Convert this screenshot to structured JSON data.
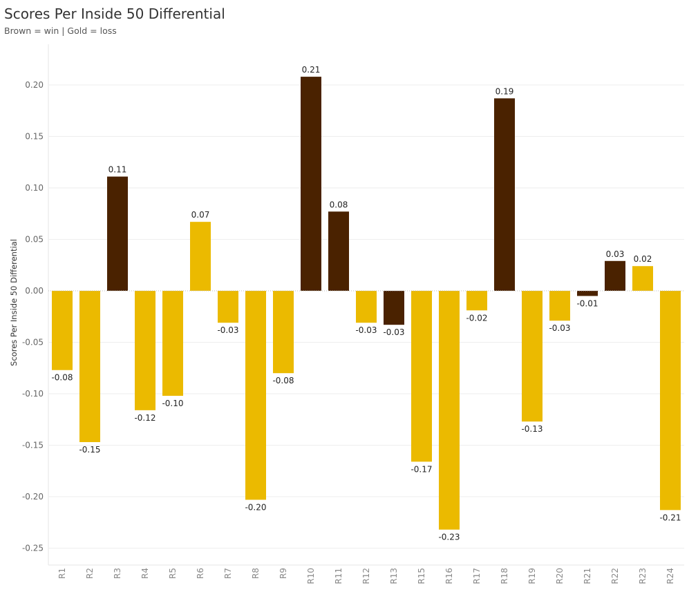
{
  "title": "Scores Per Inside 50 Differential",
  "subtitle": "Brown = win | Gold = loss",
  "colors": {
    "win": "#4a2200",
    "loss": "#ebba00"
  },
  "chart_data": {
    "type": "bar",
    "title": "Scores Per Inside 50 Differential",
    "subtitle": "Brown = win | Gold = loss",
    "xlabel": "",
    "ylabel": "Scores Per Inside 50 Differential",
    "ylim": [
      -0.26,
      0.24
    ],
    "yticks": [
      0.2,
      0.15,
      0.1,
      0.05,
      0.0,
      -0.05,
      -0.1,
      -0.15,
      -0.2,
      -0.25
    ],
    "ytick_labels": [
      "0.20",
      "0.15",
      "0.10",
      "0.05",
      "0.00",
      "-0.05",
      "-0.10",
      "-0.15",
      "-0.20",
      "-0.25"
    ],
    "grid": true,
    "categories": [
      "R1",
      "R2",
      "R3",
      "R4",
      "R5",
      "R6",
      "R7",
      "R8",
      "R9",
      "R10",
      "R11",
      "R12",
      "R13",
      "R15",
      "R16",
      "R17",
      "R18",
      "R19",
      "R20",
      "R21",
      "R22",
      "R23",
      "R24"
    ],
    "values": [
      -0.077,
      -0.147,
      0.111,
      -0.116,
      -0.102,
      0.067,
      -0.031,
      -0.203,
      -0.08,
      0.208,
      0.077,
      -0.031,
      -0.033,
      -0.166,
      -0.232,
      -0.019,
      0.187,
      -0.127,
      -0.029,
      -0.005,
      0.029,
      0.024,
      -0.213
    ],
    "labels": [
      "-0.08",
      "-0.15",
      "0.11",
      "-0.12",
      "-0.10",
      "0.07",
      "-0.03",
      "-0.20",
      "-0.08",
      "0.21",
      "0.08",
      "-0.03",
      "-0.03",
      "-0.17",
      "-0.23",
      "-0.02",
      "0.19",
      "-0.13",
      "-0.03",
      "-0.01",
      "0.03",
      "0.02",
      "-0.21"
    ],
    "result": [
      "loss",
      "loss",
      "win",
      "loss",
      "loss",
      "loss",
      "loss",
      "loss",
      "loss",
      "win",
      "win",
      "loss",
      "win",
      "loss",
      "loss",
      "loss",
      "win",
      "loss",
      "loss",
      "win",
      "win",
      "loss",
      "loss"
    ],
    "legend": "none"
  }
}
